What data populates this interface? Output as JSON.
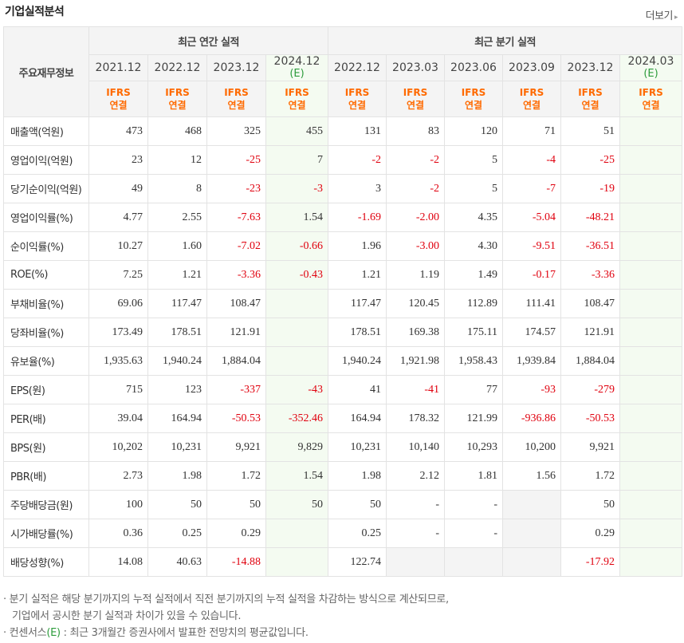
{
  "header": {
    "title": "기업실적분석",
    "more_label": "더보기",
    "more_arrow": "▸"
  },
  "table": {
    "corner_label": "주요재무정보",
    "groups": {
      "annual": "최근 연간 실적",
      "quarter": "최근 분기 실적"
    },
    "periods": [
      {
        "label": "2021.12",
        "est": ""
      },
      {
        "label": "2022.12",
        "est": ""
      },
      {
        "label": "2023.12",
        "est": ""
      },
      {
        "label": "2024.12",
        "est": "(E)"
      },
      {
        "label": "2022.12",
        "est": ""
      },
      {
        "label": "2023.03",
        "est": ""
      },
      {
        "label": "2023.06",
        "est": ""
      },
      {
        "label": "2023.09",
        "est": ""
      },
      {
        "label": "2023.12",
        "est": ""
      },
      {
        "label": "2024.03",
        "est": "(E)"
      }
    ],
    "ifrs_top": "IFRS",
    "ifrs_bottom": "연결",
    "rows": [
      {
        "label": "매출액(억원)",
        "values": [
          "473",
          "468",
          "325",
          "455",
          "131",
          "83",
          "120",
          "71",
          "51",
          ""
        ]
      },
      {
        "label": "영업이익(억원)",
        "values": [
          "23",
          "12",
          "-25",
          "7",
          "-2",
          "-2",
          "5",
          "-4",
          "-25",
          ""
        ]
      },
      {
        "label": "당기순이익(억원)",
        "values": [
          "49",
          "8",
          "-23",
          "-3",
          "3",
          "-2",
          "5",
          "-7",
          "-19",
          ""
        ]
      },
      {
        "label": "영업이익률(%)",
        "values": [
          "4.77",
          "2.55",
          "-7.63",
          "1.54",
          "-1.69",
          "-2.00",
          "4.35",
          "-5.04",
          "-48.21",
          ""
        ]
      },
      {
        "label": "순이익률(%)",
        "values": [
          "10.27",
          "1.60",
          "-7.02",
          "-0.66",
          "1.96",
          "-3.00",
          "4.30",
          "-9.51",
          "-36.51",
          ""
        ]
      },
      {
        "label": "ROE(%)",
        "values": [
          "7.25",
          "1.21",
          "-3.36",
          "-0.43",
          "1.21",
          "1.19",
          "1.49",
          "-0.17",
          "-3.36",
          ""
        ]
      },
      {
        "label": "부채비율(%)",
        "values": [
          "69.06",
          "117.47",
          "108.47",
          "",
          "117.47",
          "120.45",
          "112.89",
          "111.41",
          "108.47",
          ""
        ]
      },
      {
        "label": "당좌비율(%)",
        "values": [
          "173.49",
          "178.51",
          "121.91",
          "",
          "178.51",
          "169.38",
          "175.11",
          "174.57",
          "121.91",
          ""
        ]
      },
      {
        "label": "유보율(%)",
        "values": [
          "1,935.63",
          "1,940.24",
          "1,884.04",
          "",
          "1,940.24",
          "1,921.98",
          "1,958.43",
          "1,939.84",
          "1,884.04",
          ""
        ]
      },
      {
        "label": "EPS(원)",
        "values": [
          "715",
          "123",
          "-337",
          "-43",
          "41",
          "-41",
          "77",
          "-93",
          "-279",
          ""
        ]
      },
      {
        "label": "PER(배)",
        "values": [
          "39.04",
          "164.94",
          "-50.53",
          "-352.46",
          "164.94",
          "178.32",
          "121.99",
          "-936.86",
          "-50.53",
          ""
        ]
      },
      {
        "label": "BPS(원)",
        "values": [
          "10,202",
          "10,231",
          "9,921",
          "9,829",
          "10,231",
          "10,140",
          "10,293",
          "10,200",
          "9,921",
          ""
        ]
      },
      {
        "label": "PBR(배)",
        "values": [
          "2.73",
          "1.98",
          "1.72",
          "1.54",
          "1.98",
          "2.12",
          "1.81",
          "1.56",
          "1.72",
          ""
        ]
      },
      {
        "label": "주당배당금(원)",
        "values": [
          "100",
          "50",
          "50",
          "50",
          "50",
          "-",
          "-",
          "",
          "50",
          ""
        ]
      },
      {
        "label": "시가배당률(%)",
        "values": [
          "0.36",
          "0.25",
          "0.29",
          "",
          "0.25",
          "-",
          "-",
          "",
          "0.29",
          ""
        ]
      },
      {
        "label": "배당성향(%)",
        "values": [
          "14.08",
          "40.63",
          "-14.88",
          "",
          "122.74",
          "",
          "",
          "",
          "-17.92",
          ""
        ]
      }
    ]
  },
  "notes": {
    "line1": "· 분기 실적은 해당 분기까지의 누적 실적에서 직전 분기까지의 누적 실적을 차감하는 방식으로 계산되므로,",
    "line2": "기업에서 공시한 분기 실적과 차이가 있을 수 있습니다.",
    "line3_pre": "· 컨센서스",
    "line3_e": "(E)",
    "line3_post": " : 최근 3개월간 증권사에서 발표한 전망치의 평균값입니다."
  },
  "colors": {
    "negative": "#e0000e",
    "ifrs": "#ff6a00",
    "estimate": "#2d9c3c",
    "estimate_bg": "#f4fbf1"
  }
}
